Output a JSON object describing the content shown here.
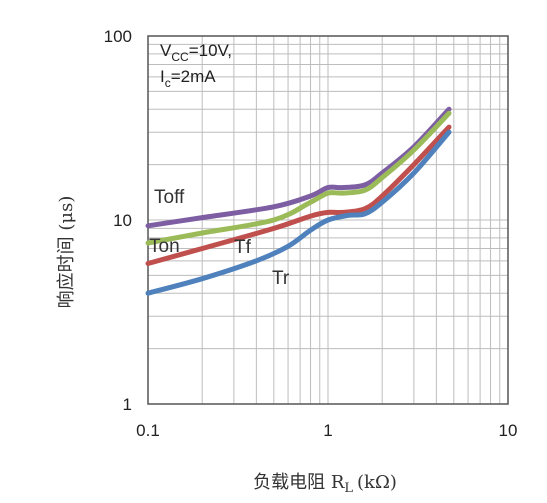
{
  "chart_data": {
    "type": "line",
    "title": "",
    "xlabel": "负载电阻 R",
    "xlabel_sub": "L",
    "xlabel_unit": "(kΩ)",
    "ylabel": "响应时间 (μs)",
    "xscale": "log",
    "yscale": "log",
    "xlim": [
      0.1,
      10
    ],
    "ylim": [
      1,
      100
    ],
    "xticks": [
      "0.1",
      "1",
      "10"
    ],
    "yticks": [
      "1",
      "10",
      "100"
    ],
    "grid": true,
    "annotation": {
      "line1_main": "V",
      "line1_sub": "CC",
      "line1_rest": "=10V,",
      "line2_main": "I",
      "line2_sub": "c",
      "line2_rest": "=2mA"
    },
    "series": [
      {
        "name": "Toff",
        "color": "#7d5ea3",
        "x": [
          0.1,
          0.2,
          0.5,
          0.8,
          1.0,
          1.2,
          1.6,
          2.0,
          3.0,
          4.7
        ],
        "y": [
          9.3,
          10.3,
          11.8,
          13.5,
          15.0,
          15.0,
          15.5,
          18.0,
          25.0,
          40.0
        ]
      },
      {
        "name": "Tf",
        "color": "#9bbb59",
        "x": [
          0.1,
          0.2,
          0.5,
          0.8,
          1.0,
          1.2,
          1.6,
          2.0,
          3.0,
          4.7
        ],
        "y": [
          7.5,
          8.5,
          10.0,
          12.5,
          14.0,
          14.0,
          14.5,
          17.0,
          24.0,
          38.0
        ]
      },
      {
        "name": "Ton",
        "color": "#c0504d",
        "x": [
          0.1,
          0.2,
          0.5,
          0.8,
          1.0,
          1.2,
          1.6,
          2.0,
          3.0,
          4.7
        ],
        "y": [
          5.8,
          7.0,
          9.0,
          10.5,
          11.0,
          11.0,
          11.5,
          13.5,
          20.0,
          32.0
        ]
      },
      {
        "name": "Tr",
        "color": "#4f81bd",
        "x": [
          0.1,
          0.2,
          0.4,
          0.6,
          0.8,
          1.0,
          1.3,
          1.6,
          2.0,
          3.0,
          4.7
        ],
        "y": [
          4.0,
          4.8,
          6.0,
          7.2,
          8.8,
          10.0,
          10.6,
          10.8,
          12.5,
          18.0,
          30.0
        ]
      }
    ],
    "series_labels": [
      {
        "text": "Toff",
        "color": "#333333"
      },
      {
        "text": "Ton",
        "color": "#333333"
      },
      {
        "text": "Tf",
        "color": "#333333"
      },
      {
        "text": "Tr",
        "color": "#333333"
      }
    ]
  }
}
